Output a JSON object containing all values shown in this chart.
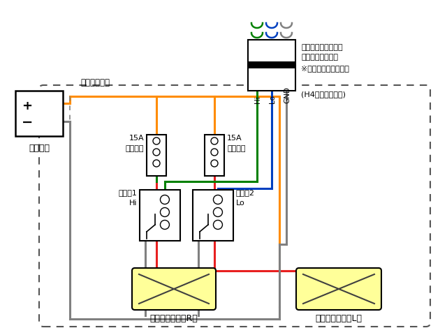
{
  "bg_color": "#ffffff",
  "battery_label": "バッテリ",
  "battery_plus": "+",
  "battery_minus": "−",
  "shinki_label": "新規製作部分",
  "connector_label1": "車両側ヘッドライト",
  "connector_label2": "コネクタ（右側）",
  "connector_label3": "※左側は使用しない。",
  "connector_label4": "(H4オスコネクタ)",
  "hi_label": "Hi",
  "lo_label": "Lo",
  "gnd_label": "GND",
  "fuse1_label1": "15A",
  "fuse1_label2": "ヒューズ",
  "fuse2_label1": "15A",
  "fuse2_label2": "ヒューズ",
  "relay1_label1": "リレー1",
  "relay1_label2": "Hi",
  "relay2_label1": "リレー2",
  "relay2_label2": "Lo",
  "headlight_r_label": "ヘッドライト（R）",
  "headlight_l_label": "ヘッドライト（L）",
  "color_orange": "#FF8C00",
  "color_red": "#E82020",
  "color_green": "#008000",
  "color_blue": "#0040C0",
  "color_gray": "#808080",
  "color_dark": "#404040",
  "color_yellow_fill": "#FFFF99",
  "color_black": "#000000",
  "wire_lw": 2.2
}
